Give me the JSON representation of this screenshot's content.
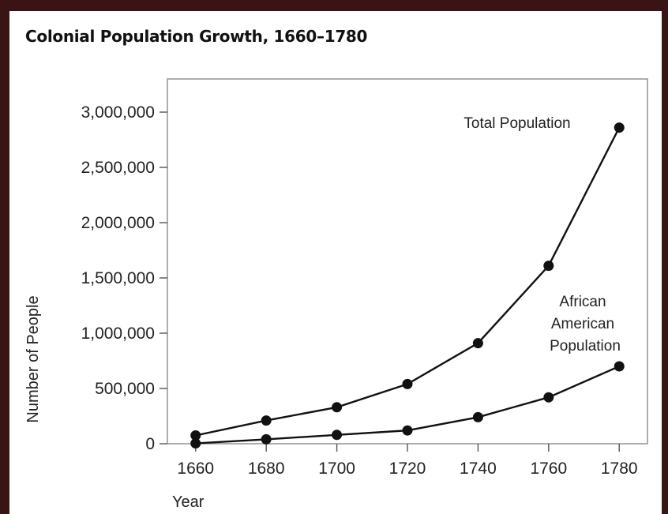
{
  "chart_data": {
    "type": "line",
    "title": "Colonial Population Growth, 1660–1780",
    "xlabel": "Year",
    "ylabel": "Number of People",
    "x": [
      1660,
      1680,
      1700,
      1720,
      1740,
      1760,
      1780
    ],
    "x_tick_labels": [
      "1660",
      "1680",
      "1700",
      "1720",
      "1740",
      "1760",
      "1780"
    ],
    "y_ticks": [
      0,
      500000,
      1000000,
      1500000,
      2000000,
      2500000,
      3000000
    ],
    "y_tick_labels": [
      "0",
      "500,000",
      "1,000,000",
      "1,500,000",
      "2,000,000",
      "2,500,000",
      "3,000,000"
    ],
    "xlim": [
      1652,
      1788
    ],
    "ylim": [
      0,
      3300000
    ],
    "grid": false,
    "legend": "none",
    "series": [
      {
        "name": "Total Population",
        "values": [
          75000,
          210000,
          330000,
          540000,
          910000,
          1610000,
          2860000
        ]
      },
      {
        "name_lines": [
          "African",
          "American",
          "Population"
        ],
        "values": [
          3000,
          40000,
          80000,
          120000,
          240000,
          420000,
          700000
        ]
      }
    ]
  }
}
